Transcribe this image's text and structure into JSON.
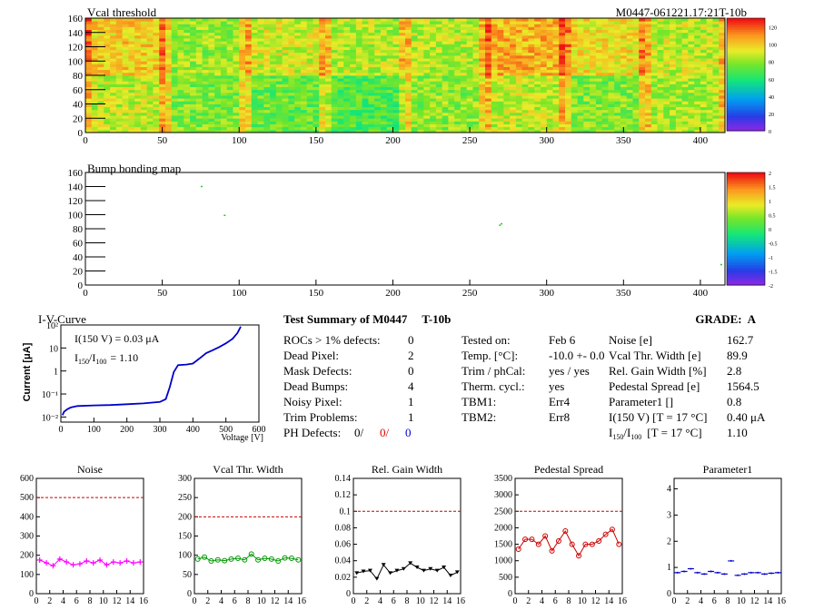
{
  "module_id": "M0447-061221.17:21T-10b",
  "chart_data": [
    {
      "type": "heatmap",
      "title": "Vcal threshold",
      "xlim": [
        0,
        416
      ],
      "ylim": [
        0,
        160
      ],
      "x_ticks": [
        0,
        50,
        100,
        150,
        200,
        250,
        300,
        350,
        400
      ],
      "y_ticks": [
        0,
        20,
        40,
        60,
        80,
        100,
        120,
        140,
        160
      ],
      "colorbar_ticks": [
        0,
        20,
        40,
        60,
        80,
        100,
        120
      ],
      "colorbar_range": [
        0,
        130
      ],
      "grid": "2 rows x 8 chips (52 x 80 each)",
      "chip_mean_values": [
        [
          88,
          78,
          74,
          70,
          80,
          88,
          78,
          84
        ],
        [
          100,
          82,
          90,
          86,
          86,
          105,
          96,
          88
        ]
      ]
    },
    {
      "type": "heatmap",
      "title": "Bump bonding map",
      "xlim": [
        0,
        416
      ],
      "ylim": [
        0,
        160
      ],
      "x_ticks": [
        0,
        50,
        100,
        150,
        200,
        250,
        300,
        350,
        400
      ],
      "y_ticks": [
        0,
        20,
        40,
        60,
        80,
        100,
        120,
        140,
        160
      ],
      "colorbar_ticks": [
        "2",
        "1.5",
        "1",
        "0.5",
        "0",
        "-0.5",
        "-1",
        "-1.5",
        "-2"
      ],
      "colorbar_range": [
        -2,
        2
      ],
      "points": [
        [
          75,
          141
        ],
        [
          90,
          100
        ],
        [
          270,
          88
        ],
        [
          269,
          86
        ],
        [
          413,
          30
        ]
      ]
    },
    {
      "type": "line",
      "title": "I-V-Curve",
      "xlabel": "Voltage [V]",
      "ylabel": "Current [μA]",
      "scale_y": "log",
      "xlim": [
        0,
        600
      ],
      "ylim": [
        0.006,
        100
      ],
      "x_ticks": [
        0,
        100,
        200,
        300,
        400,
        500,
        600
      ],
      "y_tick_labels": [
        "10⁻²",
        "10⁻¹",
        "1",
        "10",
        "10²"
      ],
      "annotation1": "I(150 V) = 0.03 μA",
      "annotation2_main": "I",
      "annotation2_sub1": "150",
      "annotation2_mid": "/I",
      "annotation2_sub2": "100",
      "annotation2_value": "=  1.10",
      "points": [
        [
          5,
          0.012
        ],
        [
          10,
          0.017
        ],
        [
          20,
          0.022
        ],
        [
          30,
          0.026
        ],
        [
          50,
          0.03
        ],
        [
          100,
          0.032
        ],
        [
          150,
          0.033
        ],
        [
          200,
          0.036
        ],
        [
          250,
          0.039
        ],
        [
          300,
          0.045
        ],
        [
          318,
          0.06
        ],
        [
          330,
          0.2
        ],
        [
          342,
          0.9
        ],
        [
          355,
          1.8
        ],
        [
          380,
          1.9
        ],
        [
          400,
          2.1
        ],
        [
          420,
          3.5
        ],
        [
          440,
          6
        ],
        [
          460,
          8
        ],
        [
          480,
          11
        ],
        [
          500,
          16
        ],
        [
          520,
          25
        ],
        [
          535,
          45
        ],
        [
          545,
          85
        ]
      ]
    },
    {
      "type": "line",
      "title": "Noise",
      "xlim": [
        0,
        16
      ],
      "ylim": [
        0,
        600
      ],
      "x_ticks": [
        0,
        2,
        4,
        6,
        8,
        10,
        12,
        14,
        16
      ],
      "y_ticks": [
        0,
        100,
        200,
        300,
        400,
        500,
        600
      ],
      "limit": 500,
      "color": "#ff00ff",
      "marker": "cross",
      "x": [
        0.5,
        1.5,
        2.5,
        3.5,
        4.5,
        5.5,
        6.5,
        7.5,
        8.5,
        9.5,
        10.5,
        11.5,
        12.5,
        13.5,
        14.5,
        15.5
      ],
      "values": [
        175,
        160,
        145,
        180,
        165,
        150,
        155,
        170,
        160,
        175,
        150,
        165,
        160,
        170,
        160,
        165
      ]
    },
    {
      "type": "line",
      "title": "Vcal Thr. Width",
      "xlim": [
        0,
        16
      ],
      "ylim": [
        0,
        300
      ],
      "x_ticks": [
        0,
        2,
        4,
        6,
        8,
        10,
        12,
        14,
        16
      ],
      "y_ticks": [
        0,
        50,
        100,
        150,
        200,
        250,
        300
      ],
      "limit": 200,
      "color": "#009900",
      "marker": "circle",
      "x": [
        0.5,
        1.5,
        2.5,
        3.5,
        4.5,
        5.5,
        6.5,
        7.5,
        8.5,
        9.5,
        10.5,
        11.5,
        12.5,
        13.5,
        14.5,
        15.5
      ],
      "values": [
        90,
        95,
        85,
        88,
        86,
        90,
        92,
        88,
        103,
        88,
        92,
        90,
        85,
        93,
        92,
        88
      ]
    },
    {
      "type": "line",
      "title": "Rel. Gain Width",
      "xlim": [
        0,
        16
      ],
      "ylim": [
        0,
        0.14
      ],
      "x_ticks": [
        0,
        2,
        4,
        6,
        8,
        10,
        12,
        14,
        16
      ],
      "y_ticks": [
        0,
        0.02,
        0.04,
        0.06,
        0.08,
        0.1,
        0.12,
        0.14
      ],
      "y_tick_labels": [
        "0",
        "0.02",
        "0.04",
        "0.06",
        "0.08",
        "0.1",
        "0.12",
        "0.14"
      ],
      "limit": 0.1,
      "color": "#000000",
      "marker": "triangle",
      "x": [
        0.5,
        1.5,
        2.5,
        3.5,
        4.5,
        5.5,
        6.5,
        7.5,
        8.5,
        9.5,
        10.5,
        11.5,
        12.5,
        13.5,
        14.5,
        15.5
      ],
      "values": [
        0.025,
        0.027,
        0.028,
        0.018,
        0.035,
        0.025,
        0.028,
        0.03,
        0.037,
        0.032,
        0.028,
        0.03,
        0.028,
        0.032,
        0.022,
        0.026
      ]
    },
    {
      "type": "line",
      "title": "Pedestal Spread",
      "xlim": [
        0,
        16
      ],
      "ylim": [
        0,
        3500
      ],
      "x_ticks": [
        0,
        2,
        4,
        6,
        8,
        10,
        12,
        14,
        16
      ],
      "y_ticks": [
        0,
        500,
        1000,
        1500,
        2000,
        2500,
        3000,
        3500
      ],
      "limit": 2500,
      "color": "#cc0000",
      "marker": "circle",
      "x": [
        0.5,
        1.5,
        2.5,
        3.5,
        4.5,
        5.5,
        6.5,
        7.5,
        8.5,
        9.5,
        10.5,
        11.5,
        12.5,
        13.5,
        14.5,
        15.5
      ],
      "values": [
        1350,
        1650,
        1650,
        1500,
        1750,
        1300,
        1600,
        1900,
        1500,
        1150,
        1500,
        1500,
        1600,
        1800,
        1950,
        1500
      ]
    },
    {
      "type": "scatter",
      "title": "Parameter1",
      "xlim": [
        0,
        16
      ],
      "ylim": [
        0,
        4.4
      ],
      "x_ticks": [
        0,
        2,
        4,
        6,
        8,
        10,
        12,
        14,
        16
      ],
      "y_ticks": [
        0,
        1,
        2,
        3,
        4
      ],
      "color": "#0000cc",
      "marker": "hbar",
      "x": [
        0.5,
        1.5,
        2.5,
        3.5,
        4.5,
        5.5,
        6.5,
        7.5,
        8.5,
        9.5,
        10.5,
        11.5,
        12.5,
        13.5,
        14.5,
        15.5
      ],
      "values": [
        0.8,
        0.85,
        0.95,
        0.8,
        0.75,
        0.85,
        0.8,
        0.75,
        1.25,
        0.7,
        0.75,
        0.8,
        0.8,
        0.75,
        0.78,
        0.8
      ]
    }
  ],
  "summary": {
    "title": "Test Summary of M0447",
    "tag": "T-10b",
    "grade_label": "GRADE:",
    "grade": "A",
    "rows": [
      {
        "label": "ROCs > 1% defects:",
        "value": "0"
      },
      {
        "label": "Dead Pixel:",
        "value": "2"
      },
      {
        "label": "Mask Defects:",
        "value": "0"
      },
      {
        "label": "Dead Bumps:",
        "value": "4"
      },
      {
        "label": "Noisy Pixel:",
        "value": "1"
      },
      {
        "label": "Trim Problems:",
        "value": "1"
      }
    ],
    "ph_label": "PH Defects:",
    "ph_values": [
      "0/",
      "0/",
      "0"
    ],
    "ph_colors": [
      "#000000",
      "#dd0000",
      "#0000cc"
    ],
    "mid_rows": [
      {
        "label": "Tested on:",
        "value": "Feb 6"
      },
      {
        "label": "Temp. [°C]:",
        "value": "-10.0 +- 0.0"
      },
      {
        "label": "Trim / phCal:",
        "value": "yes / yes"
      },
      {
        "label": "Therm. cycl.:",
        "value": "yes"
      },
      {
        "label": "TBM1:",
        "value": "Err4"
      },
      {
        "label": "TBM2:",
        "value": "Err8"
      }
    ],
    "right_rows": [
      {
        "label": "Noise [e]",
        "value": "162.7"
      },
      {
        "label": "Vcal Thr. Width [e]",
        "value": "89.9"
      },
      {
        "label": "Rel. Gain Width [%]",
        "value": "2.8"
      },
      {
        "label": "Pedestal Spread [e]",
        "value": "1564.5"
      },
      {
        "label": "Parameter1 []",
        "value": "0.8"
      },
      {
        "label": "I(150 V) [T = 17 °C]",
        "value": "0.40 μA"
      }
    ],
    "ratio_row": {
      "label_main": "I",
      "sub1": "150",
      "mid": "/I",
      "sub2": "100",
      "rest": "[T = 17 °C]",
      "value": "1.10"
    }
  }
}
